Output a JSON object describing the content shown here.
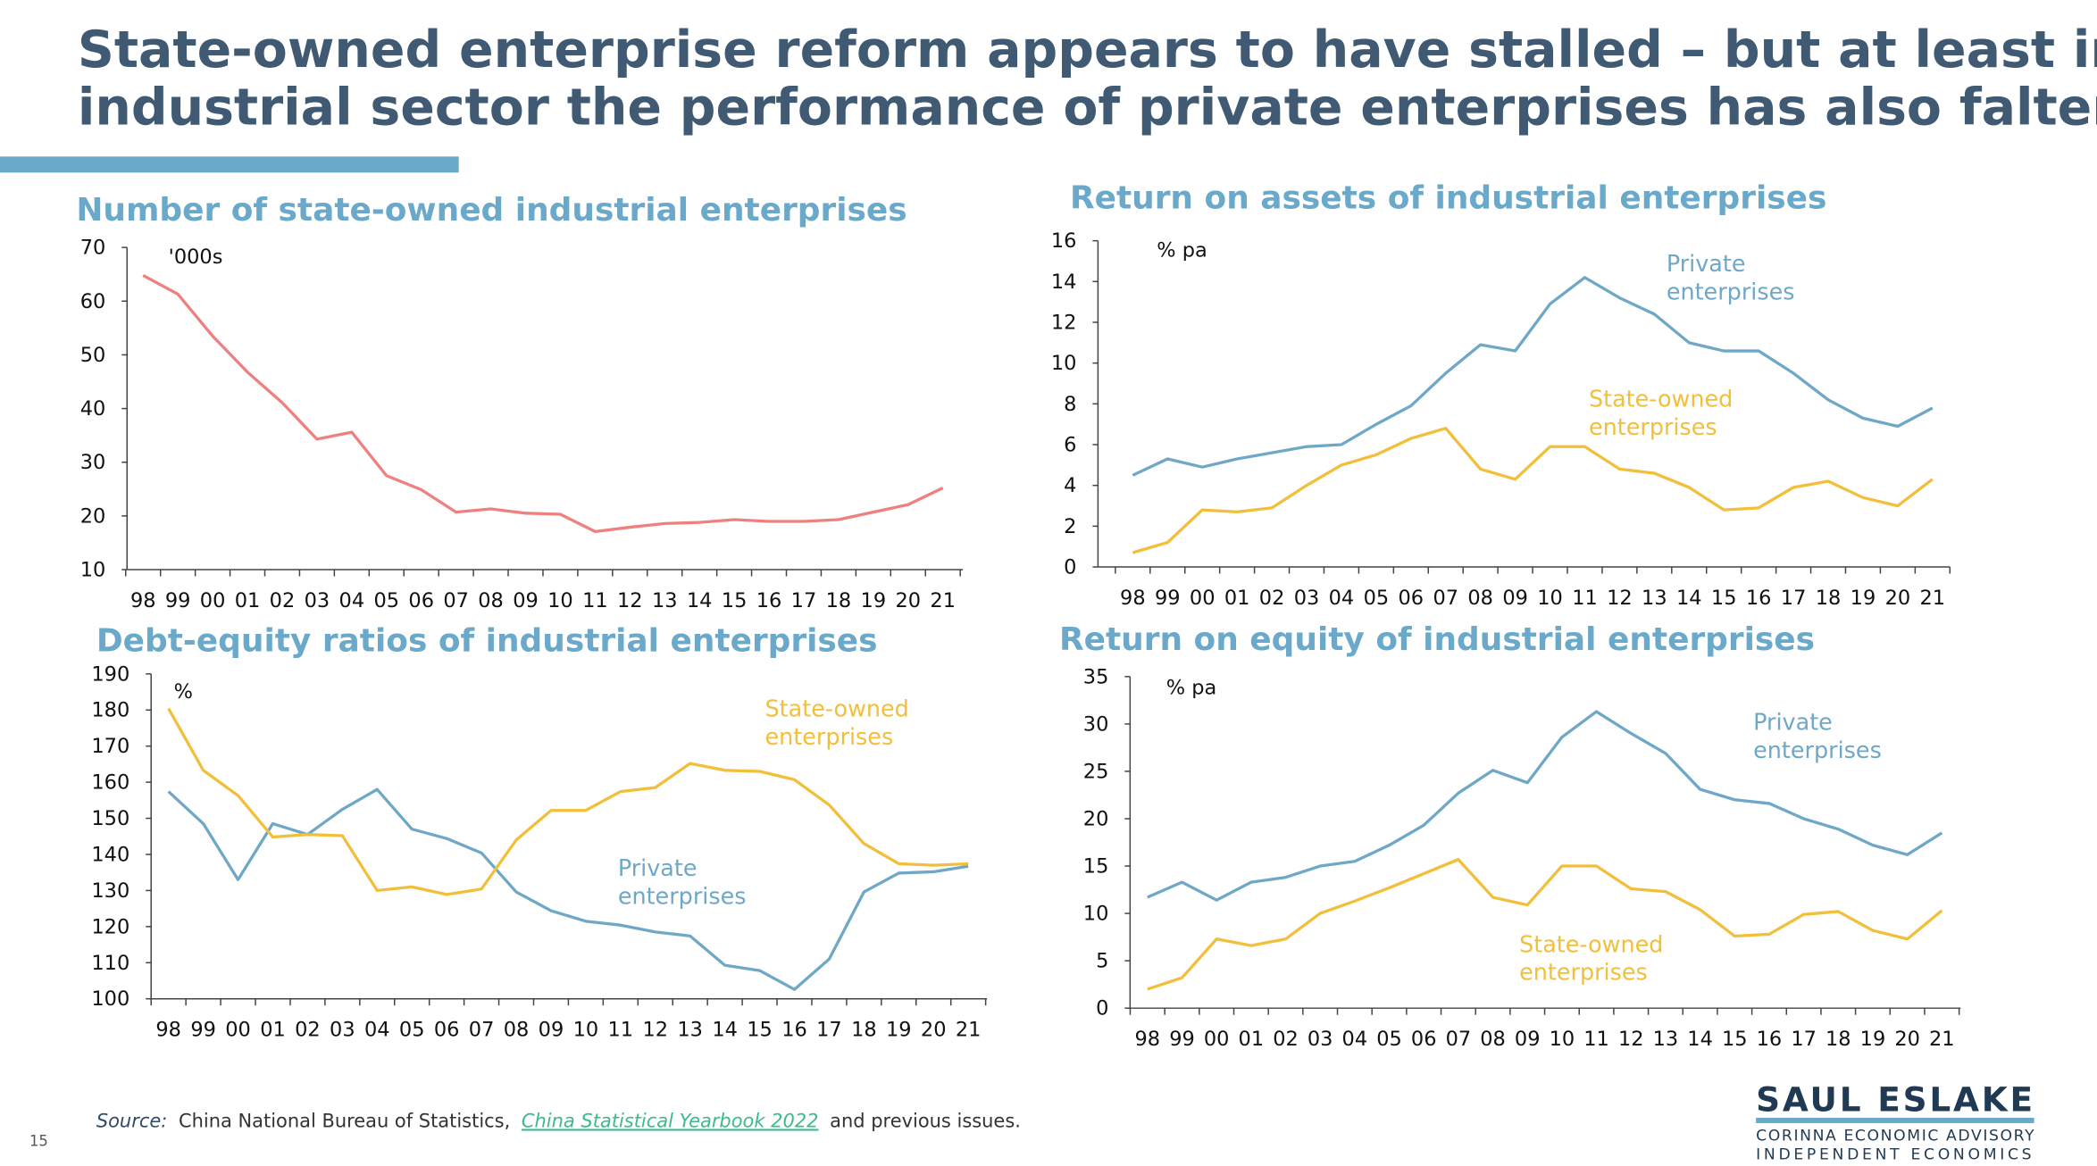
{
  "slide": {
    "title_line1": "State-owned enterprise reform appears to have stalled – but at least in the",
    "title_line2": "industrial sector the performance of private enterprises has also faltered",
    "page_number": "15",
    "source_label": "Source:",
    "source_text": "China National Bureau of Statistics,",
    "source_link": "China Statistical Yearbook 2022",
    "source_tail": "and previous issues.",
    "logo": {
      "name": "SAUL ESLAKE",
      "line1": "CORINNA ECONOMIC ADVISORY",
      "line2": "INDEPENDENT ECONOMICS"
    }
  },
  "colors": {
    "title": "#3f5a72",
    "accent_bar": "#6aa9c9",
    "private": "#6fa8c6",
    "state_owned": "#f2bf3a",
    "soe_count": "#ee8080",
    "link": "#3dbb8a"
  },
  "chart_data": [
    {
      "type": "line",
      "title": "Number of state-owned industrial enterprises",
      "unit": "'000s",
      "categories": [
        "98",
        "99",
        "00",
        "01",
        "02",
        "03",
        "04",
        "05",
        "06",
        "07",
        "08",
        "09",
        "10",
        "11",
        "12",
        "13",
        "14",
        "15",
        "16",
        "17",
        "18",
        "19",
        "20",
        "21"
      ],
      "ylim": [
        10,
        70
      ],
      "yticks": [
        10,
        20,
        30,
        40,
        50,
        60,
        70
      ],
      "series": [
        {
          "values": [
            64.8,
            61.3,
            53.5,
            46.8,
            41.1,
            34.3,
            35.6,
            27.5,
            24.9,
            20.7,
            21.3,
            20.5,
            20.3,
            17.1,
            17.9,
            18.6,
            18.8,
            19.3,
            19.0,
            19.0,
            19.3,
            20.7,
            22.1,
            25.2
          ],
          "color": "#ee8080"
        }
      ]
    },
    {
      "type": "line",
      "title": "Return on assets of industrial enterprises",
      "unit": "% pa",
      "categories": [
        "98",
        "99",
        "00",
        "01",
        "02",
        "03",
        "04",
        "05",
        "06",
        "07",
        "08",
        "09",
        "10",
        "11",
        "12",
        "13",
        "14",
        "15",
        "16",
        "17",
        "18",
        "19",
        "20",
        "21"
      ],
      "ylim": [
        0,
        16
      ],
      "yticks": [
        0,
        2,
        4,
        6,
        8,
        10,
        12,
        14,
        16
      ],
      "series": [
        {
          "name": "Private enterprises",
          "label_lines": [
            "Private",
            "enterprises"
          ],
          "color": "#6fa8c6",
          "values": [
            4.5,
            5.3,
            4.9,
            5.3,
            5.6,
            5.9,
            6.0,
            7.0,
            7.9,
            9.5,
            10.9,
            10.6,
            12.9,
            14.2,
            13.2,
            12.4,
            11.0,
            10.6,
            10.6,
            9.5,
            8.2,
            7.3,
            6.9,
            7.8
          ]
        },
        {
          "name": "State-owned enterprises",
          "label_lines": [
            "State-owned",
            "enterprises"
          ],
          "color": "#f2bf3a",
          "values": [
            0.7,
            1.2,
            2.8,
            2.7,
            2.9,
            4.0,
            5.0,
            5.5,
            6.3,
            6.8,
            4.8,
            4.3,
            5.9,
            5.9,
            4.8,
            4.6,
            3.9,
            2.8,
            2.9,
            3.9,
            4.2,
            3.4,
            3.0,
            4.3
          ]
        }
      ]
    },
    {
      "type": "line",
      "title": "Debt-equity ratios of industrial enterprises",
      "unit": "%",
      "categories": [
        "98",
        "99",
        "00",
        "01",
        "02",
        "03",
        "04",
        "05",
        "06",
        "07",
        "08",
        "09",
        "10",
        "11",
        "12",
        "13",
        "14",
        "15",
        "16",
        "17",
        "18",
        "19",
        "20",
        "21"
      ],
      "ylim": [
        100,
        190
      ],
      "yticks": [
        100,
        110,
        120,
        130,
        140,
        150,
        160,
        170,
        180,
        190
      ],
      "series": [
        {
          "name": "Private enterprises",
          "label_lines": [
            "Private",
            "enterprises"
          ],
          "color": "#6fa8c6",
          "values": [
            157.4,
            148.5,
            133,
            148.5,
            145.5,
            152.5,
            158,
            147,
            144.4,
            140.4,
            129.6,
            124.4,
            121.5,
            120.4,
            118.5,
            117.4,
            109.3,
            107.8,
            102.6,
            111,
            129.6,
            134.8,
            135.2,
            136.7
          ]
        },
        {
          "name": "State-owned enterprises",
          "label_lines": [
            "State-owned",
            "enterprises"
          ],
          "color": "#f2bf3a",
          "values": [
            180.4,
            163.3,
            156.3,
            144.8,
            145.5,
            145.2,
            130,
            131,
            128.9,
            130.4,
            144,
            152.2,
            152.2,
            157.4,
            158.5,
            165.2,
            163.3,
            163,
            160.7,
            153.7,
            143,
            137.4,
            137,
            137.4
          ]
        }
      ]
    },
    {
      "type": "line",
      "title": "Return on equity of industrial enterprises",
      "unit": "% pa",
      "categories": [
        "98",
        "99",
        "00",
        "01",
        "02",
        "03",
        "04",
        "05",
        "06",
        "07",
        "08",
        "09",
        "10",
        "11",
        "12",
        "13",
        "14",
        "15",
        "16",
        "17",
        "18",
        "19",
        "20",
        "21"
      ],
      "ylim": [
        0,
        35
      ],
      "yticks": [
        0,
        5,
        10,
        15,
        20,
        25,
        30,
        35
      ],
      "series": [
        {
          "name": "Private enterprises",
          "label_lines": [
            "Private",
            "enterprises"
          ],
          "color": "#6fa8c6",
          "values": [
            11.7,
            13.3,
            11.4,
            13.3,
            13.8,
            15,
            15.5,
            17.2,
            19.3,
            22.7,
            25.1,
            23.8,
            28.6,
            31.3,
            29,
            26.9,
            23.1,
            22,
            21.6,
            20,
            18.9,
            17.2,
            16.2,
            18.5
          ]
        },
        {
          "name": "State-owned enterprises",
          "label_lines": [
            "State-owned",
            "enterprises"
          ],
          "color": "#f2bf3a",
          "values": [
            2,
            3.2,
            7.3,
            6.6,
            7.3,
            10,
            11.3,
            12.7,
            14.2,
            15.7,
            11.7,
            10.9,
            15,
            15,
            12.6,
            12.3,
            10.4,
            7.6,
            7.8,
            9.9,
            10.2,
            8.2,
            7.3,
            10.3
          ]
        }
      ]
    }
  ]
}
